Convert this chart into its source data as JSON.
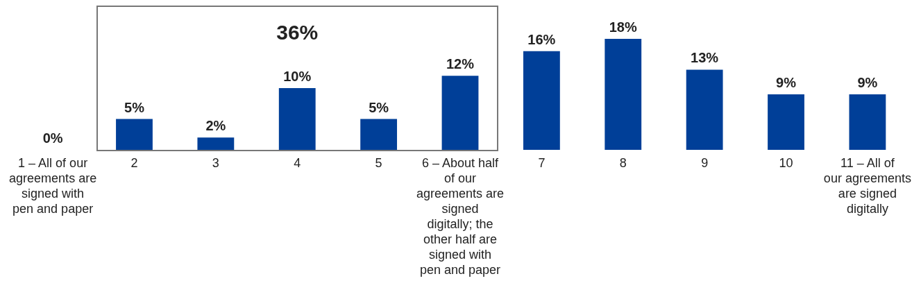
{
  "chart_data": {
    "type": "bar",
    "categories": [
      "1 – All of our agreements are signed with pen and paper",
      "2",
      "3",
      "4",
      "5",
      "6 – About half of our agreements are signed digitally; the other half are signed with pen and paper",
      "7",
      "8",
      "9",
      "10",
      "11 – All of our agreements are signed digitally"
    ],
    "values": [
      0,
      5,
      2,
      10,
      5,
      12,
      16,
      18,
      13,
      9,
      9
    ],
    "color": "#003f98",
    "value_labels": [
      "0%",
      "5%",
      "2%",
      "10%",
      "5%",
      "12%",
      "16%",
      "18%",
      "13%",
      "9%",
      "9%"
    ],
    "annotations": [
      "36%"
    ]
  }
}
